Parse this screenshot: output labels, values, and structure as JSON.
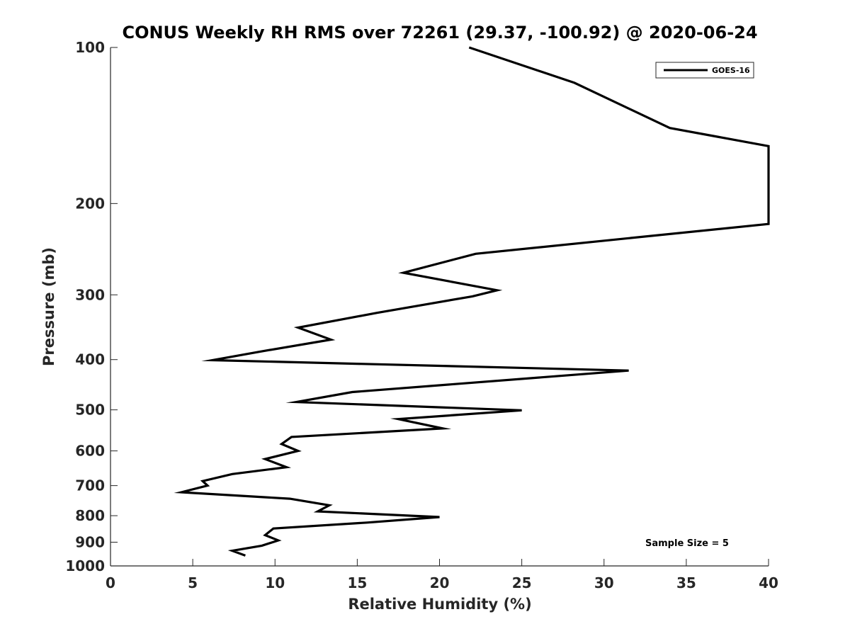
{
  "chart_data": {
    "type": "line",
    "title": "CONUS Weekly RH RMS over 72261 (29.37, -100.92) @ 2020-06-24",
    "xlabel": "Relative Humidity (%)",
    "ylabel": "Pressure (mb)",
    "xlim": [
      0,
      40
    ],
    "ylim": [
      100,
      1000
    ],
    "y_scale": "log",
    "y_reversed": true,
    "grid": false,
    "legend_position": "top-right",
    "x_ticks": [
      0,
      5,
      10,
      15,
      20,
      25,
      30,
      35,
      40
    ],
    "y_ticks": [
      100,
      200,
      300,
      400,
      500,
      600,
      700,
      800,
      900,
      1000
    ],
    "annotation": "Sample Size = 5",
    "series": [
      {
        "name": "GOES-16",
        "color": "#000000",
        "points": [
          [
            21.8,
            100
          ],
          [
            28.2,
            117
          ],
          [
            34.0,
            143
          ],
          [
            40.0,
            155
          ],
          [
            40.0,
            219
          ],
          [
            22.2,
            250
          ],
          [
            17.8,
            272
          ],
          [
            23.5,
            294
          ],
          [
            22.0,
            302
          ],
          [
            16.2,
            325
          ],
          [
            11.4,
            347
          ],
          [
            13.4,
            366
          ],
          [
            9.1,
            386
          ],
          [
            6.2,
            401
          ],
          [
            31.5,
            420
          ],
          [
            14.7,
            462
          ],
          [
            11.3,
            483
          ],
          [
            25.0,
            501
          ],
          [
            17.5,
            521
          ],
          [
            20.2,
            543
          ],
          [
            11.0,
            564
          ],
          [
            10.4,
            582
          ],
          [
            11.4,
            600
          ],
          [
            9.4,
            622
          ],
          [
            10.7,
            645
          ],
          [
            7.4,
            665
          ],
          [
            5.6,
            686
          ],
          [
            5.9,
            700
          ],
          [
            4.3,
            721
          ],
          [
            10.9,
            742
          ],
          [
            13.3,
            764
          ],
          [
            12.6,
            785
          ],
          [
            20.0,
            805
          ],
          [
            15.6,
            825
          ],
          [
            9.9,
            847
          ],
          [
            9.4,
            872
          ],
          [
            10.2,
            893
          ],
          [
            9.2,
            914
          ],
          [
            7.4,
            935
          ],
          [
            8.2,
            955
          ]
        ]
      }
    ]
  }
}
